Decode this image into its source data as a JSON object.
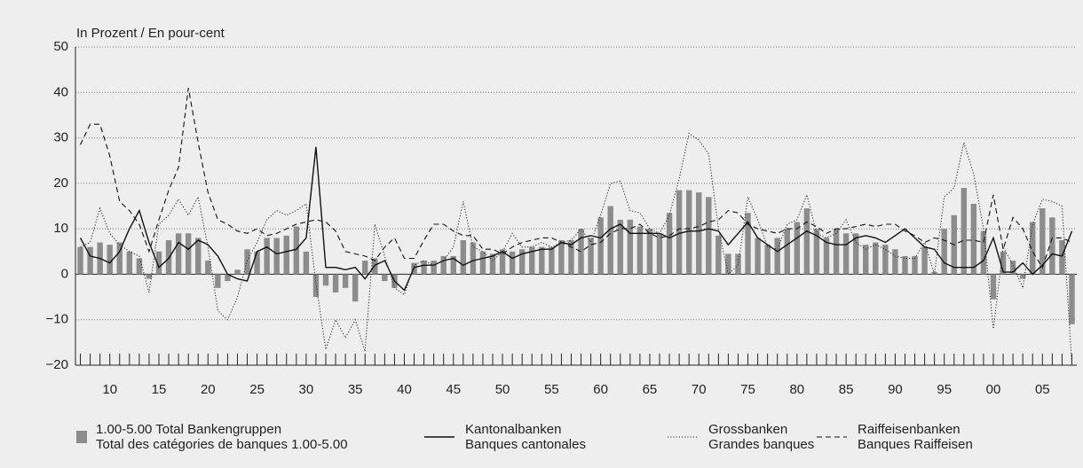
{
  "chart_data": {
    "type": "combo",
    "title": "In Prozent / En pour-cent",
    "categories": [
      null,
      null,
      null,
      "10",
      null,
      null,
      null,
      null,
      "15",
      null,
      null,
      null,
      null,
      "20",
      null,
      null,
      null,
      null,
      "25",
      null,
      null,
      null,
      null,
      "30",
      null,
      null,
      null,
      null,
      "35",
      null,
      null,
      null,
      null,
      "40",
      null,
      null,
      null,
      null,
      "45",
      null,
      null,
      null,
      null,
      "50",
      null,
      null,
      null,
      null,
      "55",
      null,
      null,
      null,
      null,
      "60",
      null,
      null,
      null,
      null,
      "65",
      null,
      null,
      null,
      null,
      "70",
      null,
      null,
      null,
      null,
      "75",
      null,
      null,
      null,
      null,
      "80",
      null,
      null,
      null,
      null,
      "85",
      null,
      null,
      null,
      null,
      "90",
      null,
      null,
      null,
      null,
      "95",
      null,
      null,
      null,
      null,
      "00",
      null,
      null,
      null,
      null,
      "05",
      null,
      null,
      null
    ],
    "ylim": [
      -20,
      50
    ],
    "yticks": [
      {
        "value": -20,
        "label": "−20"
      },
      {
        "value": -10,
        "label": "−10"
      },
      0,
      10,
      20,
      30,
      40,
      50
    ],
    "grid": true,
    "legend": "bottom",
    "series": [
      {
        "name": [
          "1.00-5.00 Total Bankengruppen",
          "Total des catégories de banques 1.00-5.00"
        ],
        "type": "bar",
        "color": "#8c8c8c",
        "values": [
          6,
          6,
          7,
          6.5,
          7,
          5,
          3.5,
          -1,
          5,
          7.5,
          9,
          9,
          8,
          3,
          -3,
          -1.5,
          1,
          5.5,
          5,
          8,
          8,
          8.5,
          10.5,
          5,
          -5,
          -2.5,
          -4,
          -3,
          -6,
          3,
          3.5,
          -1.5,
          -3,
          0,
          2.5,
          3,
          3,
          4,
          4,
          7.5,
          7,
          5,
          4.5,
          5.5,
          5,
          5.5,
          6,
          6,
          6,
          7.5,
          7.5,
          10,
          8,
          12.5,
          15,
          12,
          12,
          10.5,
          10,
          9,
          13.5,
          18.5,
          18.5,
          18,
          17,
          8.5,
          4.5,
          4.5,
          13.5,
          8,
          6.5,
          8,
          10,
          11.5,
          14.5,
          10,
          8,
          10,
          9,
          9,
          6.5,
          7,
          6.5,
          5.5,
          4,
          4,
          6,
          0.5,
          10,
          13,
          19,
          15.5,
          9.5,
          -5.5,
          5,
          3,
          -1,
          11.5,
          14.5,
          12.5,
          7.5,
          -11
        ]
      },
      {
        "name": [
          "Kantonalbanken",
          "Banques cantonales"
        ],
        "type": "line",
        "dash": "solid",
        "color": "#111111",
        "values": [
          8,
          4,
          3.5,
          2.5,
          5,
          10,
          14,
          7,
          1.5,
          3.5,
          7,
          5.5,
          7.5,
          6.5,
          4,
          0,
          -1,
          -1.5,
          5,
          6,
          4.5,
          5,
          5.5,
          8,
          28,
          1.5,
          1.5,
          1,
          1.5,
          -1,
          2,
          3,
          -1.5,
          -3.5,
          1.5,
          2,
          2,
          3,
          3.5,
          2,
          3,
          3.5,
          4,
          5,
          3.5,
          4.5,
          5,
          5.5,
          5.5,
          7,
          6.5,
          8,
          8.5,
          8,
          10,
          11,
          9,
          9,
          9,
          9,
          8,
          9,
          9.5,
          9.5,
          10,
          9.5,
          6.5,
          9,
          11.5,
          8,
          6.5,
          5,
          6.5,
          8,
          9.5,
          8.5,
          7,
          6.5,
          6.5,
          8,
          8.5,
          8,
          7,
          8.5,
          10,
          8,
          6,
          5.5,
          2.5,
          1.5,
          1.5,
          1.5,
          3,
          8,
          0.5,
          0.5,
          2.5,
          0,
          2,
          4.5,
          4,
          9.5
        ]
      },
      {
        "name": [
          "Grossbanken",
          "Grandes banques"
        ],
        "type": "line",
        "dash": "dotted",
        "color": "#333333",
        "values": [
          6,
          7,
          14.5,
          9,
          6.5,
          5,
          4,
          -4,
          11,
          13,
          16.5,
          13,
          17,
          6,
          -8,
          -10,
          -5,
          3,
          7,
          12,
          14,
          13,
          14,
          15.5,
          -2,
          -16.5,
          -10,
          -14,
          -10,
          -17,
          11,
          4,
          -3,
          -4.5,
          2,
          3,
          2,
          3,
          6,
          16,
          6,
          5,
          3,
          5,
          9,
          6,
          6,
          7,
          6,
          7,
          7.5,
          10,
          7,
          13,
          20,
          20.5,
          14,
          13.5,
          10,
          9,
          13,
          21,
          31,
          29.5,
          26.5,
          10,
          0,
          2,
          17,
          12,
          6,
          5.5,
          11,
          12,
          17.5,
          9,
          8,
          9,
          12,
          7,
          5.5,
          6.5,
          5.5,
          4,
          3.5,
          3.5,
          7,
          0,
          17,
          19,
          29,
          22,
          10,
          -12,
          6,
          2,
          -3,
          11,
          16.5,
          16,
          15,
          -20
        ]
      },
      {
        "name": [
          "Raiffeisenbanken",
          "Banques Raiffeisen"
        ],
        "type": "line",
        "dash": "dashed",
        "color": "#111111",
        "values": [
          28.5,
          33,
          33,
          26,
          16,
          14,
          11,
          5,
          12,
          18.5,
          23.5,
          41,
          29,
          18,
          12,
          11,
          9.5,
          9,
          10,
          8.5,
          9,
          10,
          11,
          11.5,
          12,
          11.5,
          9.5,
          5,
          4.5,
          4,
          3,
          6,
          8,
          3.5,
          3.5,
          7.5,
          11,
          11,
          9.5,
          8.5,
          8.5,
          5.5,
          5.5,
          4.5,
          6,
          7,
          7.5,
          8,
          8,
          7,
          6,
          5,
          6.5,
          7,
          9,
          10,
          10,
          11,
          9,
          8,
          8.5,
          10,
          10,
          10.5,
          11.5,
          12,
          14,
          13.5,
          11,
          10,
          9.5,
          9,
          10,
          10,
          11.5,
          10.5,
          9,
          10,
          10,
          10.5,
          11,
          10.5,
          11,
          11,
          9.5,
          8.5,
          7,
          8,
          7.5,
          6.5,
          7.5,
          7.5,
          7,
          17.5,
          5.5,
          12.5,
          10,
          5,
          1.5,
          8,
          8,
          7
        ]
      }
    ]
  }
}
